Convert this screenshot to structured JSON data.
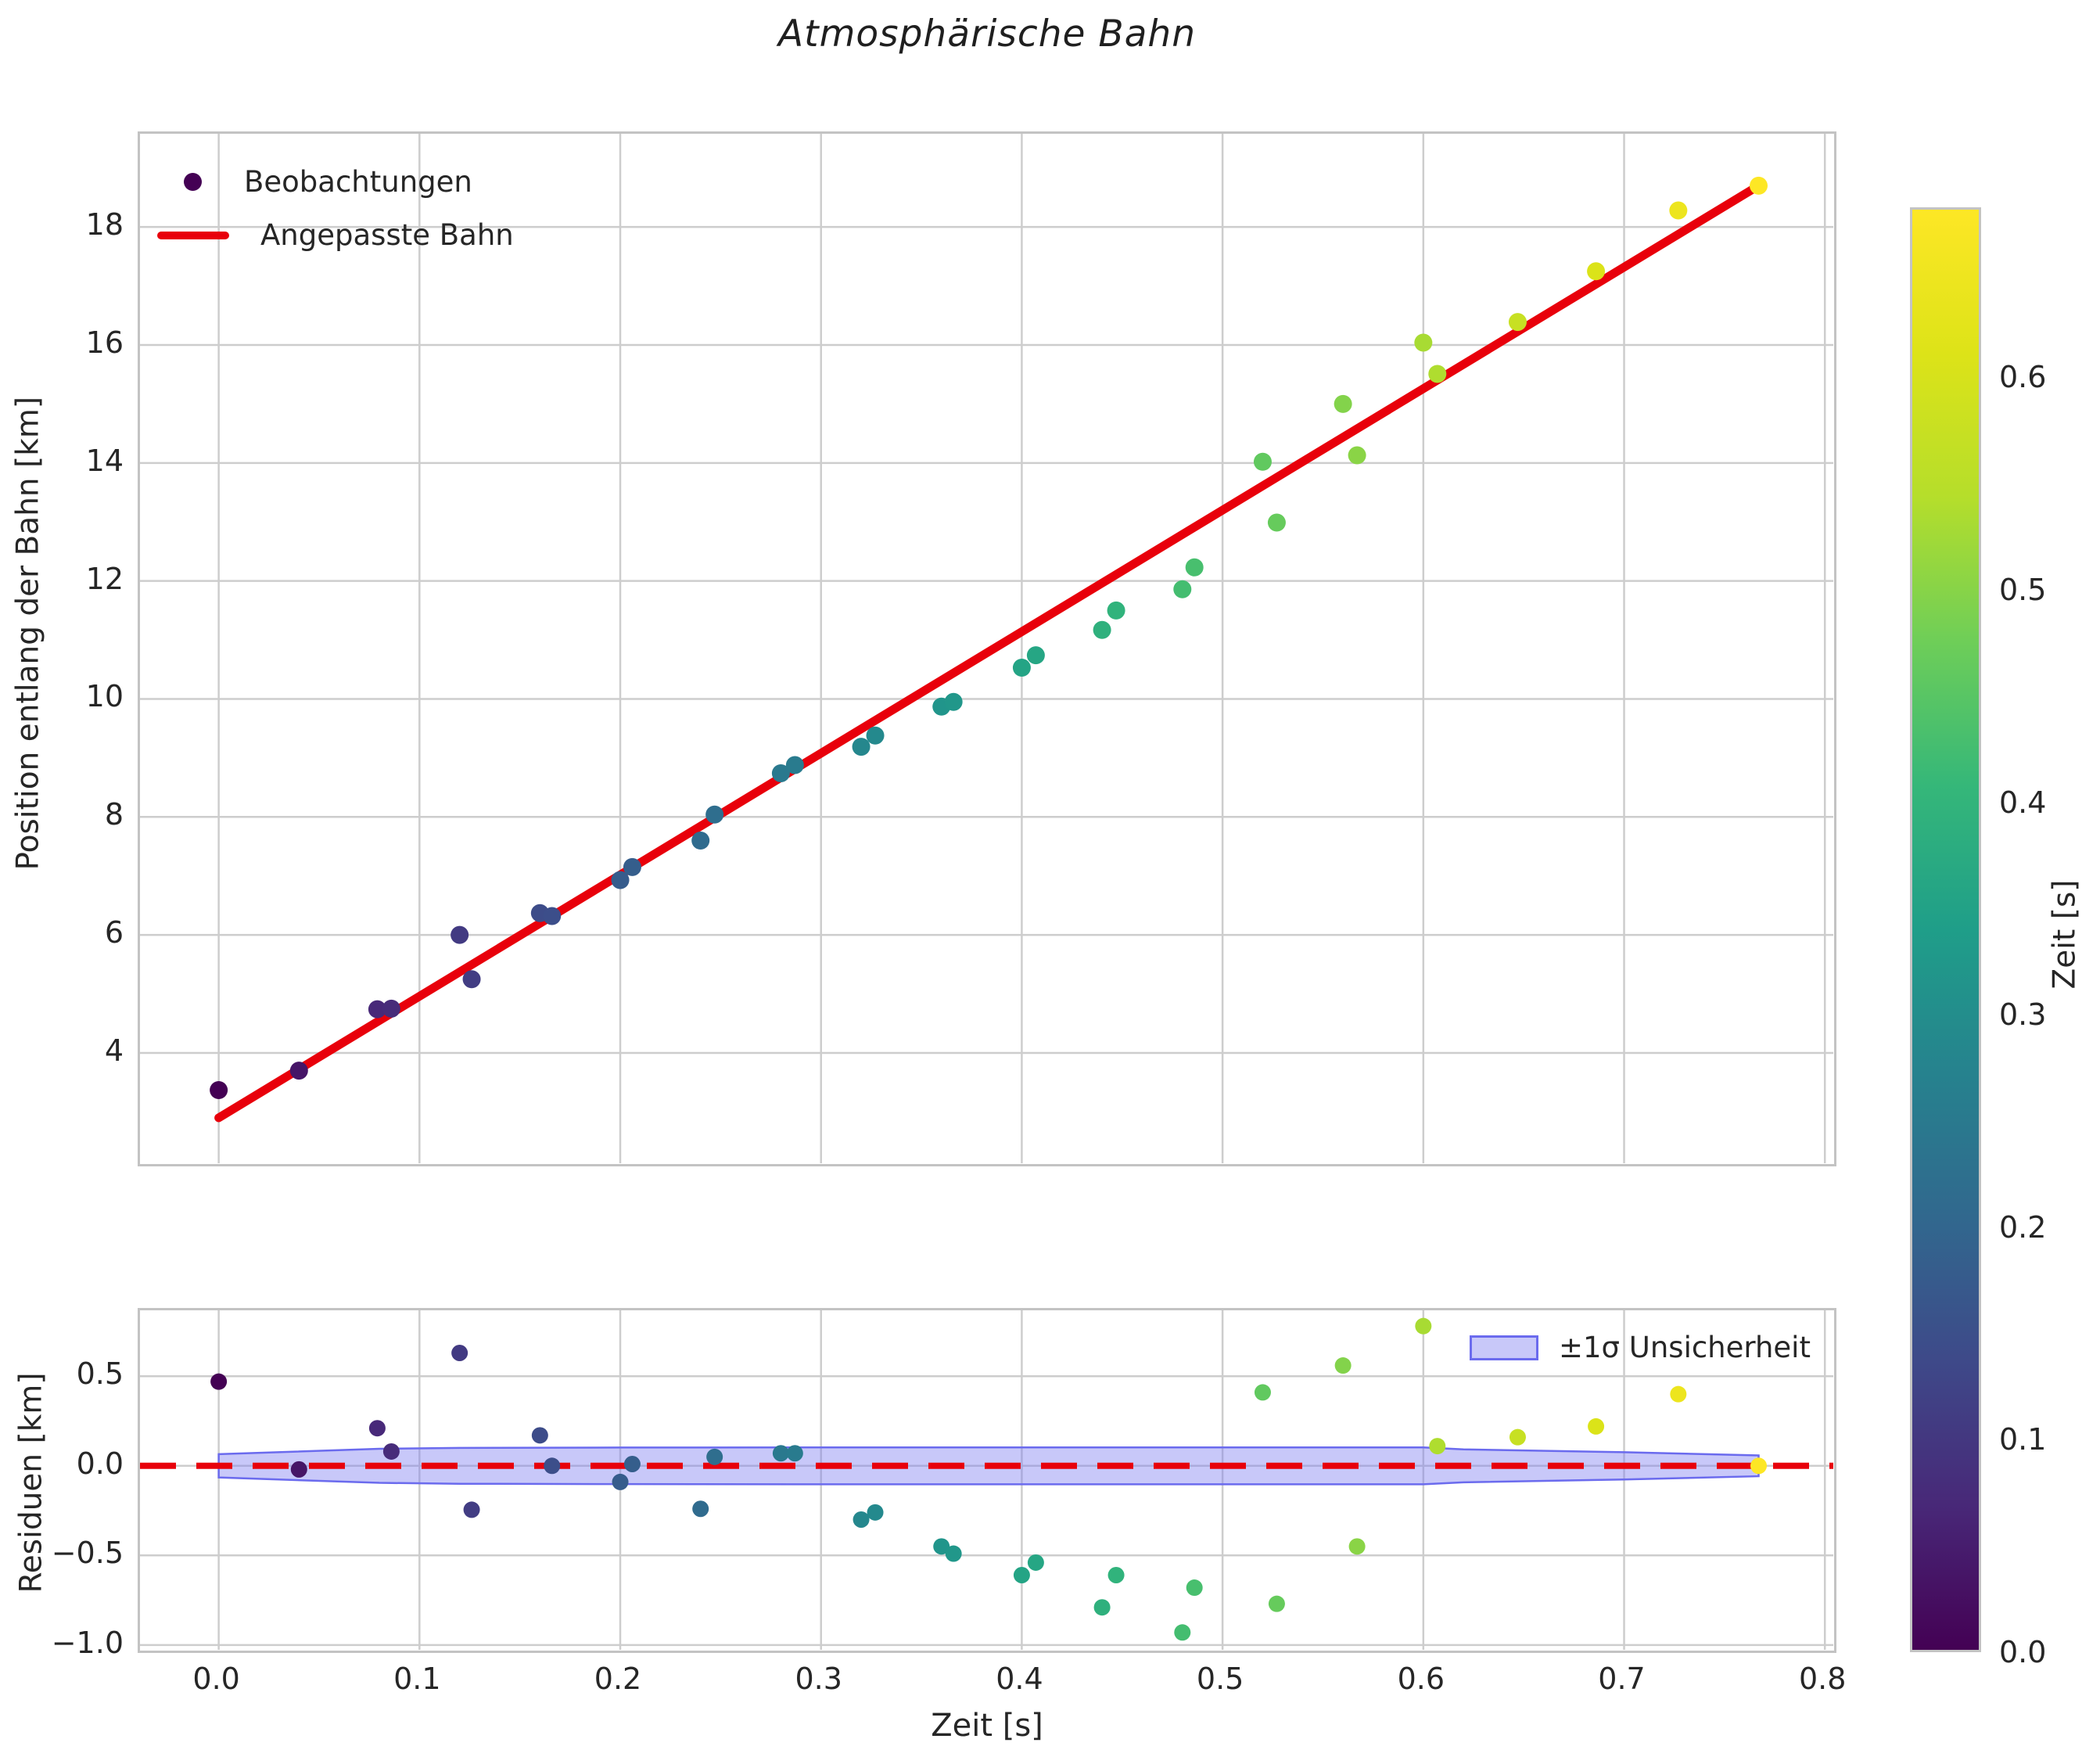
{
  "title": "Atmosphärische Bahn",
  "legend": {
    "observations_label": "Beobachtungen",
    "fit_label": "Angepasste Bahn",
    "band_label": "±1σ Unsicherheit"
  },
  "axes": {
    "main": {
      "ylabel": "Position entlang der Bahn [km]",
      "y_tick_labels": [
        "4",
        "6",
        "8",
        "10",
        "12",
        "14",
        "16",
        "18"
      ],
      "y_tick_values": [
        4,
        6,
        8,
        10,
        12,
        14,
        16,
        18
      ]
    },
    "residual": {
      "ylabel": "Residuen [km]",
      "xlabel": "Zeit [s]",
      "x_tick_labels": [
        "0.0",
        "0.1",
        "0.2",
        "0.3",
        "0.4",
        "0.5",
        "0.6",
        "0.7",
        "0.8"
      ],
      "x_tick_values": [
        0.0,
        0.1,
        0.2,
        0.3,
        0.4,
        0.5,
        0.6,
        0.7,
        0.8
      ],
      "y_tick_labels": [
        "0.5",
        "0.0",
        "−0.5",
        "−1.0"
      ],
      "y_tick_values": [
        0.5,
        0.0,
        -0.5,
        -1.0
      ]
    }
  },
  "colorbar": {
    "label": "Zeit [s]",
    "tick_labels": [
      "0.0",
      "0.1",
      "0.2",
      "0.3",
      "0.4",
      "0.5",
      "0.6"
    ],
    "tick_values": [
      0.0,
      0.1,
      0.2,
      0.3,
      0.4,
      0.5,
      0.6
    ],
    "vmin": 0.0,
    "vmax": 0.68
  },
  "colors": {
    "fit_line": "#e8000b",
    "zero_line": "#e8000b",
    "band_fill": "rgba(125,125,240,0.42)",
    "band_edge": "#6b6bee",
    "grid": "#cdcdcd",
    "text": "#262626"
  },
  "chart_data": [
    {
      "type": "scatter",
      "title": "Atmosphärische Bahn",
      "xlabel": "Zeit [s]",
      "ylabel": "Position entlang der Bahn [km]",
      "xlim": [
        -0.0392,
        0.8042
      ],
      "ylim": [
        2.13,
        19.58
      ],
      "grid": true,
      "legend_position": "upper left",
      "series": [
        {
          "name": "Beobachtungen",
          "kind": "scatter",
          "colormap": "viridis",
          "color_values_unit": "Zeit [s]",
          "points_t_pos_c": [
            [
              0.0,
              3.37,
              0.0
            ],
            [
              0.04,
              3.7,
              0.035
            ],
            [
              0.079,
              4.74,
              0.07
            ],
            [
              0.086,
              4.75,
              0.076
            ],
            [
              0.12,
              6.0,
              0.106
            ],
            [
              0.126,
              5.25,
              0.112
            ],
            [
              0.16,
              6.37,
              0.142
            ],
            [
              0.166,
              6.32,
              0.147
            ],
            [
              0.2,
              6.93,
              0.177
            ],
            [
              0.206,
              7.15,
              0.183
            ],
            [
              0.24,
              7.6,
              0.213
            ],
            [
              0.247,
              8.04,
              0.219
            ],
            [
              0.28,
              8.74,
              0.248
            ],
            [
              0.287,
              8.88,
              0.254
            ],
            [
              0.32,
              9.19,
              0.284
            ],
            [
              0.327,
              9.38,
              0.29
            ],
            [
              0.36,
              9.87,
              0.319
            ],
            [
              0.366,
              9.95,
              0.324
            ],
            [
              0.4,
              10.53,
              0.355
            ],
            [
              0.407,
              10.74,
              0.361
            ],
            [
              0.44,
              11.17,
              0.39
            ],
            [
              0.447,
              11.5,
              0.396
            ],
            [
              0.48,
              11.86,
              0.426
            ],
            [
              0.486,
              12.23,
              0.431
            ],
            [
              0.52,
              14.02,
              0.461
            ],
            [
              0.527,
              12.99,
              0.467
            ],
            [
              0.56,
              15.0,
              0.496
            ],
            [
              0.567,
              14.13,
              0.503
            ],
            [
              0.6,
              16.04,
              0.532
            ],
            [
              0.607,
              15.51,
              0.538
            ],
            [
              0.647,
              16.39,
              0.574
            ],
            [
              0.686,
              17.25,
              0.608
            ],
            [
              0.727,
              18.28,
              0.645
            ],
            [
              0.767,
              18.7,
              0.68
            ]
          ]
        },
        {
          "name": "Angepasste Bahn",
          "kind": "line",
          "points": [
            [
              0.0,
              2.9
            ],
            [
              0.767,
              18.7
            ]
          ]
        }
      ]
    },
    {
      "type": "scatter",
      "xlabel": "Zeit [s]",
      "ylabel": "Residuen [km]",
      "xlim": [
        -0.0392,
        0.8042
      ],
      "ylim": [
        -1.027,
        0.868
      ],
      "grid": true,
      "zero_line_y": 0.0,
      "band_name": "±1σ Unsicherheit",
      "band_t_halfwidth": [
        [
          0.0,
          0.065
        ],
        [
          0.08,
          0.095
        ],
        [
          0.12,
          0.1
        ],
        [
          0.2,
          0.102
        ],
        [
          0.3,
          0.103
        ],
        [
          0.5,
          0.103
        ],
        [
          0.6,
          0.103
        ],
        [
          0.62,
          0.092
        ],
        [
          0.7,
          0.076
        ],
        [
          0.767,
          0.058
        ]
      ],
      "points_t_res": [
        [
          0.0,
          0.47
        ],
        [
          0.04,
          -0.02
        ],
        [
          0.079,
          0.21
        ],
        [
          0.086,
          0.08
        ],
        [
          0.12,
          0.63
        ],
        [
          0.126,
          -0.245
        ],
        [
          0.16,
          0.17
        ],
        [
          0.166,
          0.0
        ],
        [
          0.2,
          -0.09
        ],
        [
          0.206,
          0.01
        ],
        [
          0.24,
          -0.24
        ],
        [
          0.247,
          0.05
        ],
        [
          0.28,
          0.07
        ],
        [
          0.287,
          0.07
        ],
        [
          0.32,
          -0.3
        ],
        [
          0.327,
          -0.26
        ],
        [
          0.36,
          -0.45
        ],
        [
          0.366,
          -0.49
        ],
        [
          0.4,
          -0.61
        ],
        [
          0.407,
          -0.54
        ],
        [
          0.44,
          -0.79
        ],
        [
          0.447,
          -0.61
        ],
        [
          0.48,
          -0.93
        ],
        [
          0.486,
          -0.68
        ],
        [
          0.52,
          0.41
        ],
        [
          0.527,
          -0.77
        ],
        [
          0.56,
          0.56
        ],
        [
          0.567,
          -0.45
        ],
        [
          0.6,
          0.78
        ],
        [
          0.607,
          0.11
        ],
        [
          0.647,
          0.16
        ],
        [
          0.686,
          0.22
        ],
        [
          0.727,
          0.4
        ],
        [
          0.767,
          0.0
        ]
      ]
    }
  ]
}
